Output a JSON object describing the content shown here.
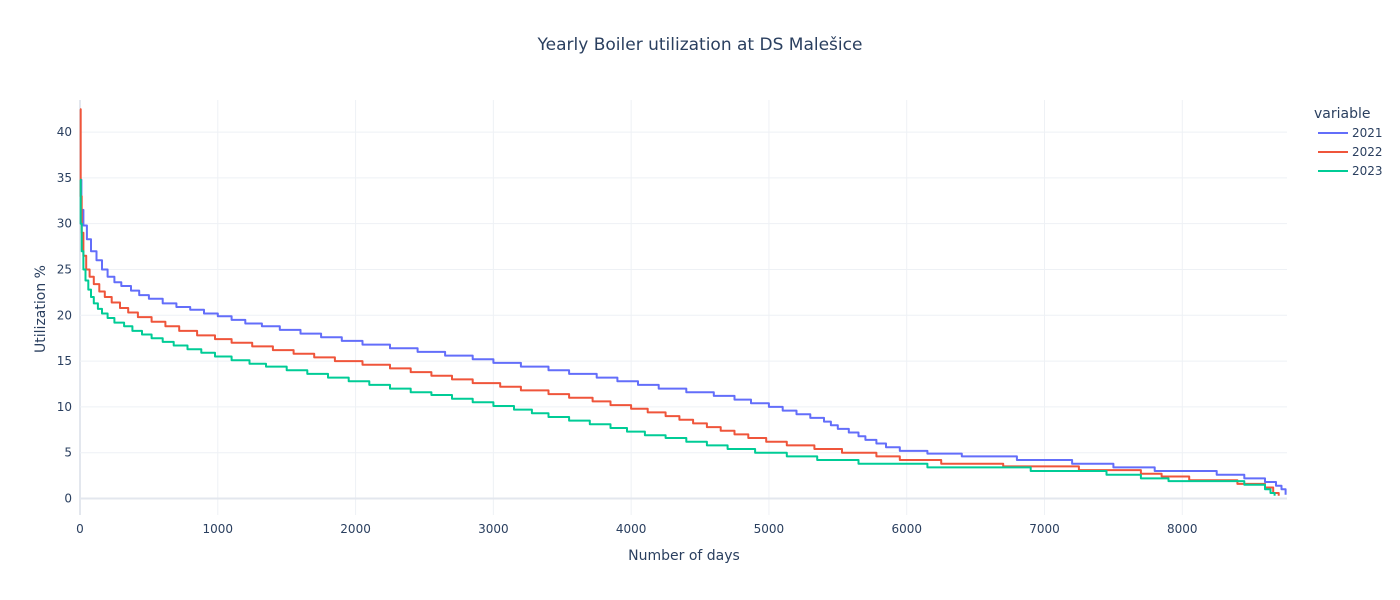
{
  "chart_data": {
    "type": "line",
    "title": "Yearly Boiler utilization at DS Malešice",
    "xlabel": "Number of days",
    "ylabel": "Utilization %",
    "xlim": [
      0,
      8760
    ],
    "ylim": [
      -1.8,
      43.5
    ],
    "x_ticks": [
      0,
      1000,
      2000,
      3000,
      4000,
      5000,
      6000,
      7000,
      8000
    ],
    "y_ticks": [
      0,
      5,
      10,
      15,
      20,
      25,
      30,
      35,
      40
    ],
    "grid": true,
    "legend_title": "variable",
    "legend_position": "top-right",
    "series": [
      {
        "name": "2021",
        "color": "#636efa",
        "points": [
          [
            0,
            34.8
          ],
          [
            10,
            31.5
          ],
          [
            25,
            29.8
          ],
          [
            50,
            28.3
          ],
          [
            80,
            27.0
          ],
          [
            120,
            26.0
          ],
          [
            160,
            25.0
          ],
          [
            200,
            24.2
          ],
          [
            250,
            23.6
          ],
          [
            300,
            23.2
          ],
          [
            370,
            22.7
          ],
          [
            430,
            22.2
          ],
          [
            500,
            21.8
          ],
          [
            600,
            21.3
          ],
          [
            700,
            20.9
          ],
          [
            800,
            20.6
          ],
          [
            900,
            20.2
          ],
          [
            1000,
            19.9
          ],
          [
            1100,
            19.5
          ],
          [
            1200,
            19.1
          ],
          [
            1320,
            18.8
          ],
          [
            1450,
            18.4
          ],
          [
            1600,
            18.0
          ],
          [
            1750,
            17.6
          ],
          [
            1900,
            17.2
          ],
          [
            2050,
            16.8
          ],
          [
            2250,
            16.4
          ],
          [
            2450,
            16.0
          ],
          [
            2650,
            15.6
          ],
          [
            2850,
            15.2
          ],
          [
            3000,
            14.8
          ],
          [
            3200,
            14.4
          ],
          [
            3400,
            14.0
          ],
          [
            3550,
            13.6
          ],
          [
            3750,
            13.2
          ],
          [
            3900,
            12.8
          ],
          [
            4050,
            12.4
          ],
          [
            4200,
            12.0
          ],
          [
            4400,
            11.6
          ],
          [
            4600,
            11.2
          ],
          [
            4750,
            10.8
          ],
          [
            4870,
            10.4
          ],
          [
            5000,
            10.0
          ],
          [
            5100,
            9.6
          ],
          [
            5200,
            9.2
          ],
          [
            5300,
            8.8
          ],
          [
            5400,
            8.4
          ],
          [
            5450,
            8.0
          ],
          [
            5500,
            7.6
          ],
          [
            5580,
            7.2
          ],
          [
            5650,
            6.8
          ],
          [
            5700,
            6.4
          ],
          [
            5780,
            6.0
          ],
          [
            5850,
            5.6
          ],
          [
            5950,
            5.2
          ],
          [
            6150,
            4.9
          ],
          [
            6400,
            4.6
          ],
          [
            6800,
            4.2
          ],
          [
            7200,
            3.8
          ],
          [
            7500,
            3.4
          ],
          [
            7800,
            3.0
          ],
          [
            8250,
            2.6
          ],
          [
            8450,
            2.2
          ],
          [
            8600,
            1.8
          ],
          [
            8680,
            1.4
          ],
          [
            8720,
            1.0
          ],
          [
            8750,
            0.4
          ]
        ]
      },
      {
        "name": "2022",
        "color": "#ef553b",
        "points": [
          [
            0,
            42.5
          ],
          [
            5,
            33.0
          ],
          [
            12,
            29.0
          ],
          [
            25,
            26.5
          ],
          [
            45,
            25.0
          ],
          [
            70,
            24.2
          ],
          [
            100,
            23.4
          ],
          [
            140,
            22.6
          ],
          [
            180,
            22.0
          ],
          [
            230,
            21.4
          ],
          [
            290,
            20.8
          ],
          [
            350,
            20.3
          ],
          [
            420,
            19.8
          ],
          [
            520,
            19.3
          ],
          [
            620,
            18.8
          ],
          [
            720,
            18.3
          ],
          [
            850,
            17.8
          ],
          [
            980,
            17.4
          ],
          [
            1100,
            17.0
          ],
          [
            1250,
            16.6
          ],
          [
            1400,
            16.2
          ],
          [
            1550,
            15.8
          ],
          [
            1700,
            15.4
          ],
          [
            1850,
            15.0
          ],
          [
            2050,
            14.6
          ],
          [
            2250,
            14.2
          ],
          [
            2400,
            13.8
          ],
          [
            2550,
            13.4
          ],
          [
            2700,
            13.0
          ],
          [
            2850,
            12.6
          ],
          [
            3050,
            12.2
          ],
          [
            3200,
            11.8
          ],
          [
            3400,
            11.4
          ],
          [
            3550,
            11.0
          ],
          [
            3720,
            10.6
          ],
          [
            3850,
            10.2
          ],
          [
            4000,
            9.8
          ],
          [
            4120,
            9.4
          ],
          [
            4250,
            9.0
          ],
          [
            4350,
            8.6
          ],
          [
            4450,
            8.2
          ],
          [
            4550,
            7.8
          ],
          [
            4650,
            7.4
          ],
          [
            4750,
            7.0
          ],
          [
            4850,
            6.6
          ],
          [
            4980,
            6.2
          ],
          [
            5130,
            5.8
          ],
          [
            5330,
            5.4
          ],
          [
            5530,
            5.0
          ],
          [
            5780,
            4.6
          ],
          [
            5950,
            4.2
          ],
          [
            6250,
            3.8
          ],
          [
            6700,
            3.5
          ],
          [
            7250,
            3.1
          ],
          [
            7700,
            2.7
          ],
          [
            7850,
            2.4
          ],
          [
            8050,
            2.0
          ],
          [
            8400,
            1.6
          ],
          [
            8600,
            1.2
          ],
          [
            8660,
            0.6
          ],
          [
            8700,
            0.3
          ]
        ]
      },
      {
        "name": "2023",
        "color": "#00cc96",
        "points": [
          [
            0,
            34.8
          ],
          [
            5,
            30.0
          ],
          [
            12,
            27.0
          ],
          [
            25,
            25.0
          ],
          [
            40,
            23.8
          ],
          [
            60,
            22.8
          ],
          [
            80,
            22.0
          ],
          [
            100,
            21.3
          ],
          [
            130,
            20.7
          ],
          [
            160,
            20.2
          ],
          [
            200,
            19.7
          ],
          [
            250,
            19.2
          ],
          [
            320,
            18.8
          ],
          [
            380,
            18.3
          ],
          [
            450,
            17.9
          ],
          [
            520,
            17.5
          ],
          [
            600,
            17.1
          ],
          [
            680,
            16.7
          ],
          [
            780,
            16.3
          ],
          [
            880,
            15.9
          ],
          [
            980,
            15.5
          ],
          [
            1100,
            15.1
          ],
          [
            1230,
            14.7
          ],
          [
            1350,
            14.4
          ],
          [
            1500,
            14.0
          ],
          [
            1650,
            13.6
          ],
          [
            1800,
            13.2
          ],
          [
            1950,
            12.8
          ],
          [
            2100,
            12.4
          ],
          [
            2250,
            12.0
          ],
          [
            2400,
            11.6
          ],
          [
            2550,
            11.3
          ],
          [
            2700,
            10.9
          ],
          [
            2850,
            10.5
          ],
          [
            3000,
            10.1
          ],
          [
            3150,
            9.7
          ],
          [
            3280,
            9.3
          ],
          [
            3400,
            8.9
          ],
          [
            3550,
            8.5
          ],
          [
            3700,
            8.1
          ],
          [
            3850,
            7.7
          ],
          [
            3970,
            7.3
          ],
          [
            4100,
            6.9
          ],
          [
            4250,
            6.6
          ],
          [
            4400,
            6.2
          ],
          [
            4550,
            5.8
          ],
          [
            4700,
            5.4
          ],
          [
            4900,
            5.0
          ],
          [
            5130,
            4.6
          ],
          [
            5350,
            4.2
          ],
          [
            5650,
            3.8
          ],
          [
            6150,
            3.4
          ],
          [
            6900,
            3.0
          ],
          [
            7450,
            2.6
          ],
          [
            7700,
            2.2
          ],
          [
            7900,
            1.9
          ],
          [
            8450,
            1.5
          ],
          [
            8600,
            1.0
          ],
          [
            8640,
            0.6
          ],
          [
            8670,
            0.3
          ]
        ]
      }
    ]
  }
}
